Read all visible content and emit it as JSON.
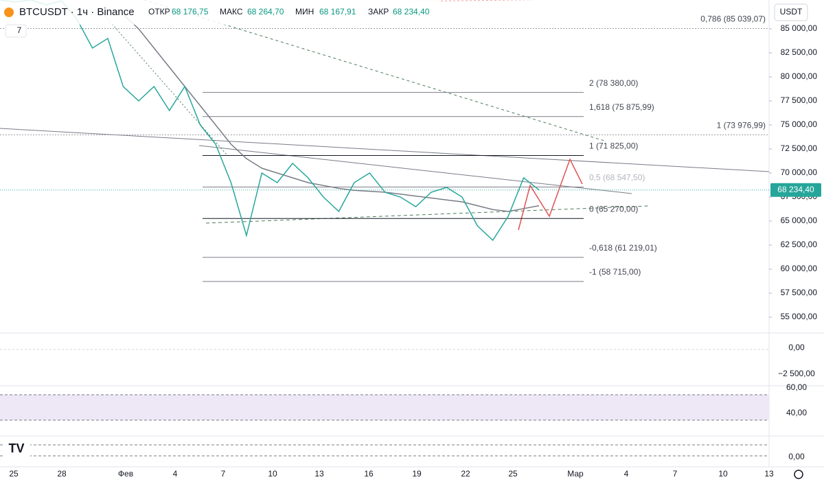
{
  "header": {
    "symbol": "BTCUSDT · 1ч · Binance",
    "open_label": "ОТКР",
    "open": "68 176,75",
    "high_label": "МАКС",
    "high": "68 264,70",
    "low_label": "МИН",
    "low": "68 167,91",
    "close_label": "ЗАКР",
    "close": "68 234,40",
    "indicator_count": "7",
    "currency": "USDT"
  },
  "price_axis": {
    "ylim": [
      53357,
      88000
    ],
    "ticks": [
      {
        "value": 85000,
        "label": "85 000,00"
      },
      {
        "value": 82500,
        "label": "82 500,00"
      },
      {
        "value": 80000,
        "label": "80 000,00"
      },
      {
        "value": 77500,
        "label": "77 500,00"
      },
      {
        "value": 75000,
        "label": "75 000,00"
      },
      {
        "value": 72500,
        "label": "72 500,00"
      },
      {
        "value": 70000,
        "label": "70 000,00"
      },
      {
        "value": 67500,
        "label": "67 500,00"
      },
      {
        "value": 65000,
        "label": "65 000,00"
      },
      {
        "value": 62500,
        "label": "62 500,00"
      },
      {
        "value": 60000,
        "label": "60 000,00"
      },
      {
        "value": 57500,
        "label": "57 500,00"
      },
      {
        "value": 55000,
        "label": "55 000,00"
      }
    ]
  },
  "last_price": {
    "value": 68234.4,
    "label": "68 234,40"
  },
  "fib_levels": [
    {
      "value": 85039.07,
      "label": "0,786 (85 039,07)"
    },
    {
      "value": 78380,
      "label": "2 (78 380,00)"
    },
    {
      "value": 75875.99,
      "label": "1,618 (75 875,99)"
    },
    {
      "value": 73976.99,
      "label": "1 (73 976,99)"
    },
    {
      "value": 71825,
      "label": "1 (71 825,00)"
    },
    {
      "value": 68547.5,
      "label": "0,5 (68 547,50)"
    },
    {
      "value": 65270,
      "label": "0 (65 270,00)"
    },
    {
      "value": 61219.01,
      "label": "-0,618 (61 219,01)"
    },
    {
      "value": 58715,
      "label": "-1 (58 715,00)"
    }
  ],
  "price_series": {
    "values": [
      88000,
      87800,
      88000,
      87500,
      87900,
      86000,
      83000,
      84000,
      79000,
      77500,
      79000,
      76500,
      79000,
      75000,
      73000,
      69000,
      63500,
      70000,
      69000,
      71000,
      69500,
      67500,
      66000,
      69000,
      70000,
      68000,
      67500,
      66500,
      68000,
      68500,
      67500,
      64500,
      63000,
      65500,
      69500,
      68234
    ]
  },
  "ma_series": {
    "values": [
      null,
      null,
      null,
      null,
      null,
      null,
      null,
      null,
      86500,
      85000,
      83000,
      81000,
      79000,
      77000,
      75000,
      73000,
      71500,
      70500,
      70000,
      69500,
      69000,
      68700,
      68400,
      68200,
      68100,
      68000,
      67800,
      67600,
      67400,
      67200,
      67000,
      66600,
      66200,
      66000,
      66300,
      66600
    ]
  },
  "indicators": {
    "macd_ticks": [
      "0,00",
      "−2 500,00"
    ],
    "rsi_ticks": [
      "60,00",
      "40,00"
    ],
    "stoch_ticks": [
      "0,00"
    ]
  },
  "time_axis": {
    "labels": [
      "25",
      "28",
      "Фев",
      "4",
      "7",
      "10",
      "13",
      "16",
      "19",
      "22",
      "25",
      "Мар",
      "4",
      "7",
      "10",
      "13"
    ]
  }
}
